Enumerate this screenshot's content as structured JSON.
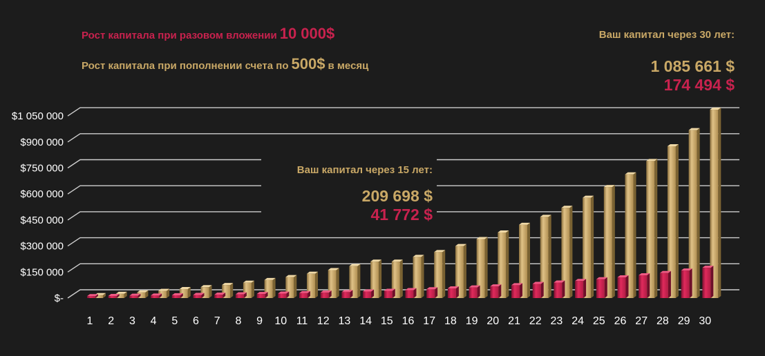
{
  "legend": {
    "red_prefix": "Рост  капитала  при разовом  вложении",
    "red_amount": "10 000$",
    "gold_prefix": "Рост капитала  при пополнении счета по",
    "gold_amount": "500$",
    "gold_suffix": "в месяц"
  },
  "callout_30": {
    "heading": "Ваш капитал  через 30 лет:",
    "value_gold": "1 085 661 $",
    "value_red": "174 494 $"
  },
  "callout_15": {
    "heading": "Ваш капитал  через 15 лет:",
    "value_gold": "209 698 $",
    "value_red": "41 772 $"
  },
  "colors": {
    "gold": "#c9a866",
    "red": "#c8224e",
    "background": "#1c1c1c",
    "text": "#ffffff",
    "grid": "#cfcfcf"
  },
  "chart_data": {
    "type": "bar",
    "categories": [
      "1",
      "2",
      "3",
      "4",
      "5",
      "6",
      "7",
      "8",
      "9",
      "10",
      "11",
      "12",
      "13",
      "14",
      "15",
      "16",
      "17",
      "18",
      "19",
      "20",
      "21",
      "22",
      "23",
      "24",
      "25",
      "26",
      "27",
      "28",
      "29",
      "30"
    ],
    "series": [
      {
        "name": "Рост капитала при пополнении счета по 500$ в месяц",
        "color": "#c9a866",
        "values": [
          17000,
          24500,
          32500,
          41500,
          51500,
          62500,
          75000,
          88500,
          104000,
          121000,
          140000,
          161000,
          184000,
          210000,
          210000,
          237000,
          265000,
          300000,
          340000,
          378000,
          422000,
          468000,
          520000,
          578000,
          640000,
          713000,
          790000,
          875000,
          968000,
          1085661
        ]
      },
      {
        "name": "Рост капитала при разовом вложении 10 000$",
        "color": "#c8224e",
        "values": [
          11000,
          12100,
          13300,
          14600,
          16100,
          17700,
          19500,
          21400,
          23600,
          25900,
          28500,
          31400,
          34500,
          38000,
          41772,
          45900,
          50500,
          55600,
          61100,
          67200,
          74000,
          81400,
          89500,
          98500,
          108300,
          119200,
          131100,
          144200,
          158600,
          174494
        ]
      }
    ],
    "y_ticks": [
      "$-",
      "$150 000",
      "$300 000",
      "$450 000",
      "$600 000",
      "$750 000",
      "$900 000",
      "$1 050 000"
    ],
    "ylim": [
      0,
      1050000
    ],
    "grid": true,
    "title": "",
    "xlabel": "",
    "ylabel": ""
  }
}
